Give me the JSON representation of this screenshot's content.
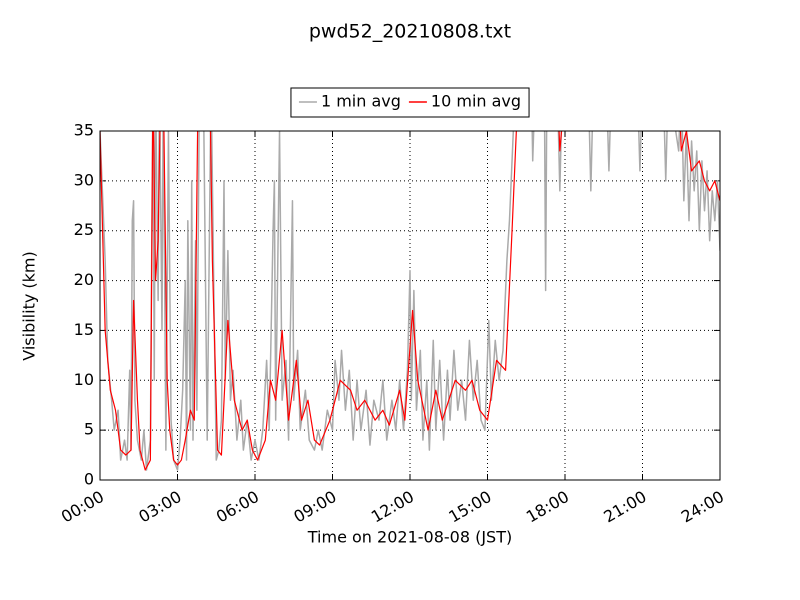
{
  "chart_data": {
    "type": "line",
    "title": "pwd52_20210808.txt",
    "x_label": "Time on 2021-08-08 (JST)",
    "y_label": "Visibility (km)",
    "xlim": [
      0,
      24
    ],
    "ylim": [
      0,
      35
    ],
    "xticks": [
      {
        "value": 0,
        "label": "00:00"
      },
      {
        "value": 3,
        "label": "03:00"
      },
      {
        "value": 6,
        "label": "06:00"
      },
      {
        "value": 9,
        "label": "09:00"
      },
      {
        "value": 12,
        "label": "12:00"
      },
      {
        "value": 15,
        "label": "15:00"
      },
      {
        "value": 18,
        "label": "18:00"
      },
      {
        "value": 21,
        "label": "21:00"
      },
      {
        "value": 24,
        "label": "24:00"
      }
    ],
    "yticks": [
      0,
      5,
      10,
      15,
      20,
      25,
      30,
      35
    ],
    "grid": true,
    "legend": "top",
    "series": [
      {
        "name": "1 min avg",
        "color": "#aaaaaa",
        "x": [
          0,
          0.2,
          0.3,
          0.45,
          0.55,
          0.7,
          0.8,
          0.95,
          1.05,
          1.15,
          1.2,
          1.25,
          1.3,
          1.35,
          1.45,
          1.6,
          1.7,
          1.8,
          1.95,
          2.05,
          2.1,
          2.15,
          2.25,
          2.3,
          2.4,
          2.45,
          2.55,
          2.65,
          2.75,
          2.85,
          3.0,
          3.1,
          3.2,
          3.3,
          3.35,
          3.4,
          3.5,
          3.55,
          3.6,
          3.7,
          3.75,
          3.85,
          4.0,
          4.15,
          4.3,
          4.4,
          4.5,
          4.6,
          4.7,
          4.8,
          4.85,
          4.95,
          5.05,
          5.15,
          5.3,
          5.45,
          5.55,
          5.7,
          5.85,
          6.0,
          6.15,
          6.3,
          6.45,
          6.55,
          6.7,
          6.75,
          6.8,
          6.95,
          7.05,
          7.2,
          7.3,
          7.45,
          7.5,
          7.65,
          7.75,
          7.95,
          8.1,
          8.3,
          8.45,
          8.6,
          8.8,
          9.0,
          9.1,
          9.25,
          9.35,
          9.5,
          9.65,
          9.8,
          9.95,
          10.1,
          10.3,
          10.45,
          10.6,
          10.8,
          10.95,
          11.1,
          11.3,
          11.45,
          11.6,
          11.75,
          11.9,
          12.0,
          12.05,
          12.15,
          12.25,
          12.4,
          12.5,
          12.65,
          12.75,
          12.9,
          13.0,
          13.15,
          13.3,
          13.45,
          13.55,
          13.7,
          13.85,
          14.0,
          14.15,
          14.3,
          14.45,
          14.6,
          14.75,
          14.9,
          15.05,
          15.15,
          15.3,
          15.45,
          15.6,
          15.75,
          15.85,
          16.0,
          16.1,
          16.7,
          16.75,
          16.85,
          17.2,
          17.25,
          17.3,
          17.7,
          17.8,
          17.9,
          18.9,
          19.0,
          19.1,
          19.6,
          19.7,
          19.8,
          20.8,
          20.9,
          21.0,
          21.8,
          21.9,
          22.0,
          22.4,
          22.5,
          22.6,
          22.7,
          22.8,
          22.9,
          23.0,
          23.1,
          23.2,
          23.3,
          23.4,
          23.5,
          23.6,
          23.7,
          23.8,
          23.9,
          24.0
        ],
        "values": [
          35,
          22,
          12,
          8,
          5,
          7,
          2,
          4,
          2,
          11,
          3,
          26,
          28,
          8,
          4,
          2,
          5,
          1,
          4,
          40,
          10,
          40,
          18,
          40,
          15,
          40,
          3,
          35,
          6,
          2,
          1,
          4,
          9,
          20,
          2,
          26,
          5,
          30,
          4,
          24,
          7,
          40,
          40,
          4,
          40,
          20,
          2,
          3,
          6,
          30,
          10,
          23,
          8,
          11,
          4,
          8,
          3,
          6,
          2,
          4,
          2,
          5,
          12,
          5,
          25,
          30,
          6,
          35,
          8,
          12,
          4,
          28,
          8,
          13,
          5,
          9,
          4,
          3,
          5,
          3,
          7,
          5,
          12,
          8,
          13,
          7,
          11,
          4,
          10,
          5,
          9,
          3.5,
          8,
          6,
          10,
          4,
          8,
          5,
          10,
          5,
          11,
          21,
          8,
          19,
          7,
          13,
          4,
          10,
          3,
          14,
          5,
          12,
          4,
          11,
          6,
          13,
          7,
          10,
          6,
          14,
          8,
          12,
          6,
          5,
          16,
          8,
          14,
          10,
          13,
          22,
          26,
          35,
          40,
          40,
          32,
          40,
          40,
          19,
          40,
          40,
          29,
          40,
          40,
          29,
          40,
          40,
          31,
          40,
          40,
          31,
          40,
          40,
          30,
          40,
          33,
          40,
          28,
          35,
          26,
          34,
          29,
          33,
          25,
          32,
          27,
          31,
          24,
          29,
          26,
          30,
          23
        ]
      },
      {
        "name": "10 min avg",
        "color": "#ff0000",
        "x": [
          0,
          0.2,
          0.4,
          0.6,
          0.8,
          1.0,
          1.2,
          1.3,
          1.45,
          1.55,
          1.75,
          1.95,
          2.05,
          2.15,
          2.25,
          2.35,
          2.45,
          2.6,
          2.7,
          2.85,
          3.0,
          3.15,
          3.3,
          3.5,
          3.65,
          3.8,
          4.25,
          4.35,
          4.55,
          4.7,
          4.95,
          5.2,
          5.5,
          5.7,
          5.9,
          6.1,
          6.4,
          6.6,
          6.8,
          7.05,
          7.3,
          7.6,
          7.8,
          8.05,
          8.3,
          8.5,
          8.9,
          9.3,
          9.7,
          9.95,
          10.25,
          10.65,
          10.95,
          11.2,
          11.6,
          11.8,
          12.1,
          12.3,
          12.7,
          13.0,
          13.25,
          13.75,
          14.15,
          14.4,
          14.7,
          15.0,
          15.35,
          15.7,
          15.95,
          16.2,
          17.7,
          17.8,
          17.9,
          18.0,
          22.4,
          22.5,
          22.7,
          22.9,
          23.2,
          23.4,
          23.6,
          23.8,
          24.0
        ],
        "values": [
          35,
          15,
          9,
          7,
          3,
          2.5,
          3,
          18,
          8,
          3,
          1,
          2,
          40,
          20,
          24,
          40,
          40,
          10,
          5,
          2,
          1.5,
          2,
          4,
          7,
          6,
          40,
          40,
          22,
          3,
          2.5,
          16,
          8,
          5,
          6,
          3,
          2,
          4,
          10,
          8,
          15,
          6,
          12,
          6,
          8,
          4,
          3.5,
          6,
          10,
          9,
          7,
          8,
          6,
          7,
          5.5,
          9,
          6,
          17,
          10,
          5,
          9,
          6,
          10,
          9,
          10,
          7,
          6,
          12,
          11,
          25,
          40,
          40,
          33,
          36,
          40,
          40,
          33,
          35,
          31,
          32,
          30,
          29,
          30,
          28
        ]
      }
    ]
  }
}
